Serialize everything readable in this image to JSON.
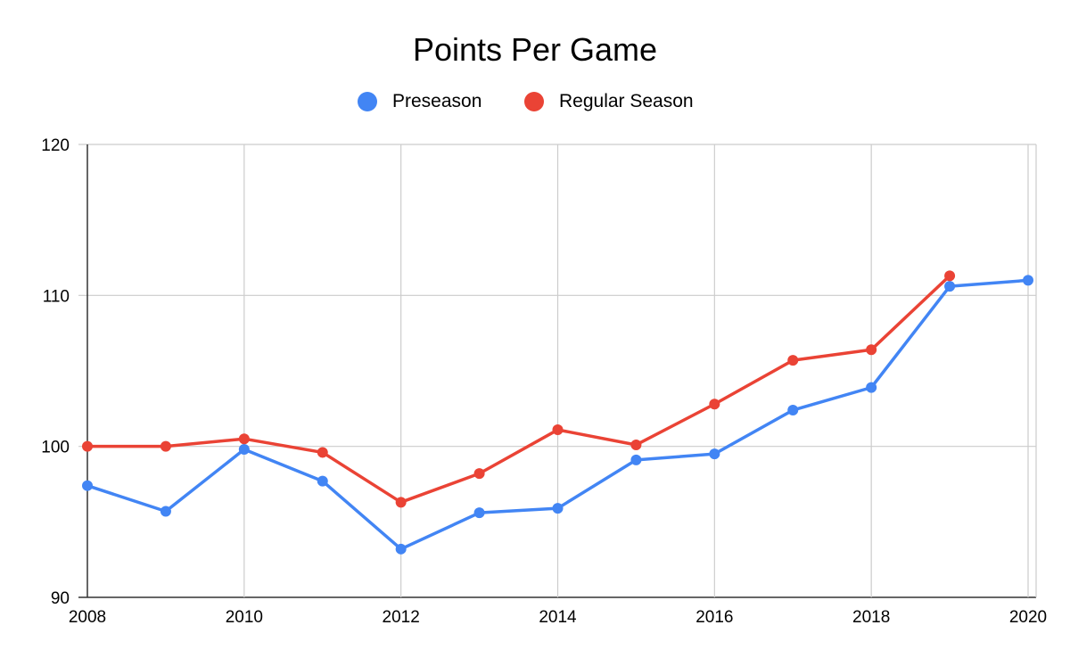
{
  "chart_data": {
    "type": "line",
    "title": "Points Per Game",
    "xlabel": "",
    "ylabel": "",
    "x": [
      2008,
      2009,
      2010,
      2011,
      2012,
      2013,
      2014,
      2015,
      2016,
      2017,
      2018,
      2019,
      2020
    ],
    "x_ticks": [
      "2008",
      "2010",
      "2012",
      "2014",
      "2016",
      "2018",
      "2020"
    ],
    "y_ticks": [
      "90",
      "100",
      "110",
      "120"
    ],
    "xlim": [
      2008,
      2020
    ],
    "ylim": [
      90,
      120
    ],
    "grid": true,
    "legend_position": "top-center",
    "series": [
      {
        "name": "Preseason",
        "color": "#4285f4",
        "values": [
          97.4,
          95.7,
          99.8,
          97.7,
          93.2,
          95.6,
          95.9,
          99.1,
          99.5,
          102.4,
          103.9,
          110.6,
          111.0
        ]
      },
      {
        "name": "Regular Season",
        "color": "#ea4335",
        "values": [
          100.0,
          100.0,
          100.5,
          99.6,
          96.3,
          98.2,
          101.1,
          100.1,
          102.8,
          105.7,
          106.4,
          111.3,
          null
        ]
      }
    ]
  }
}
